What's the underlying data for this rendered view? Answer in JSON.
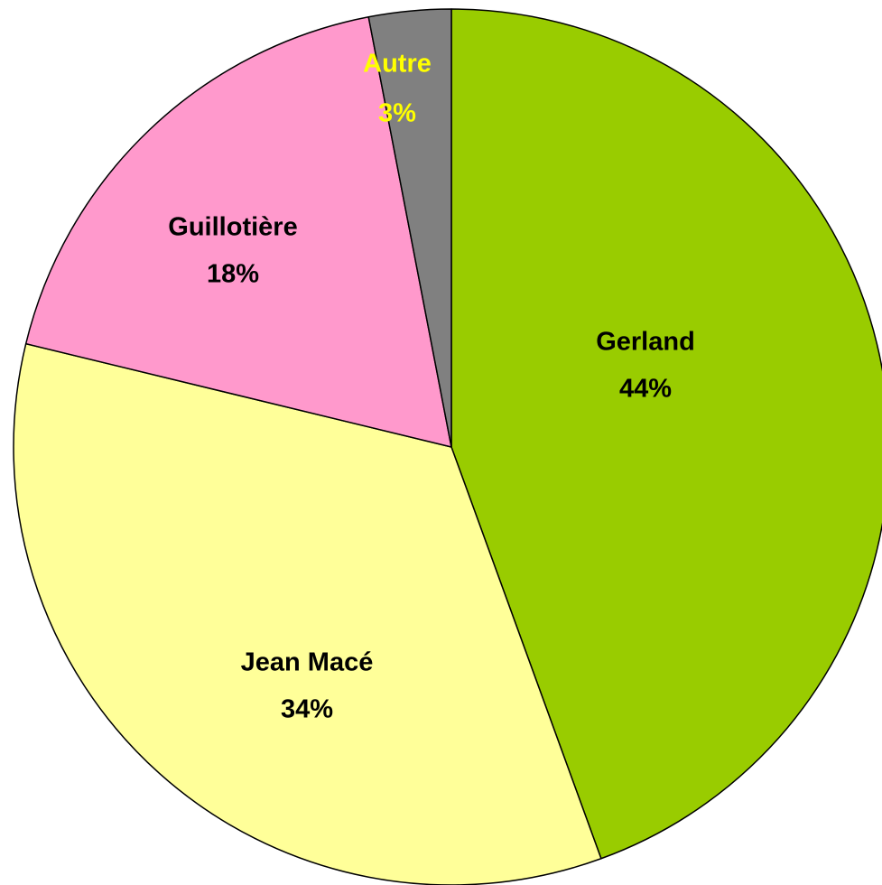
{
  "chart_data": {
    "type": "pie",
    "categories": [
      "Gerland",
      "Jean Macé",
      "Guillotière",
      "Autre"
    ],
    "values": [
      44,
      34,
      18,
      3
    ],
    "value_labels": [
      "44%",
      "34%",
      "18%",
      "3%"
    ],
    "colors": [
      "#99cc00",
      "#ffff99",
      "#ff99cc",
      "#808080"
    ],
    "label_colors": [
      "#000000",
      "#000000",
      "#000000",
      "#ffff00"
    ]
  }
}
